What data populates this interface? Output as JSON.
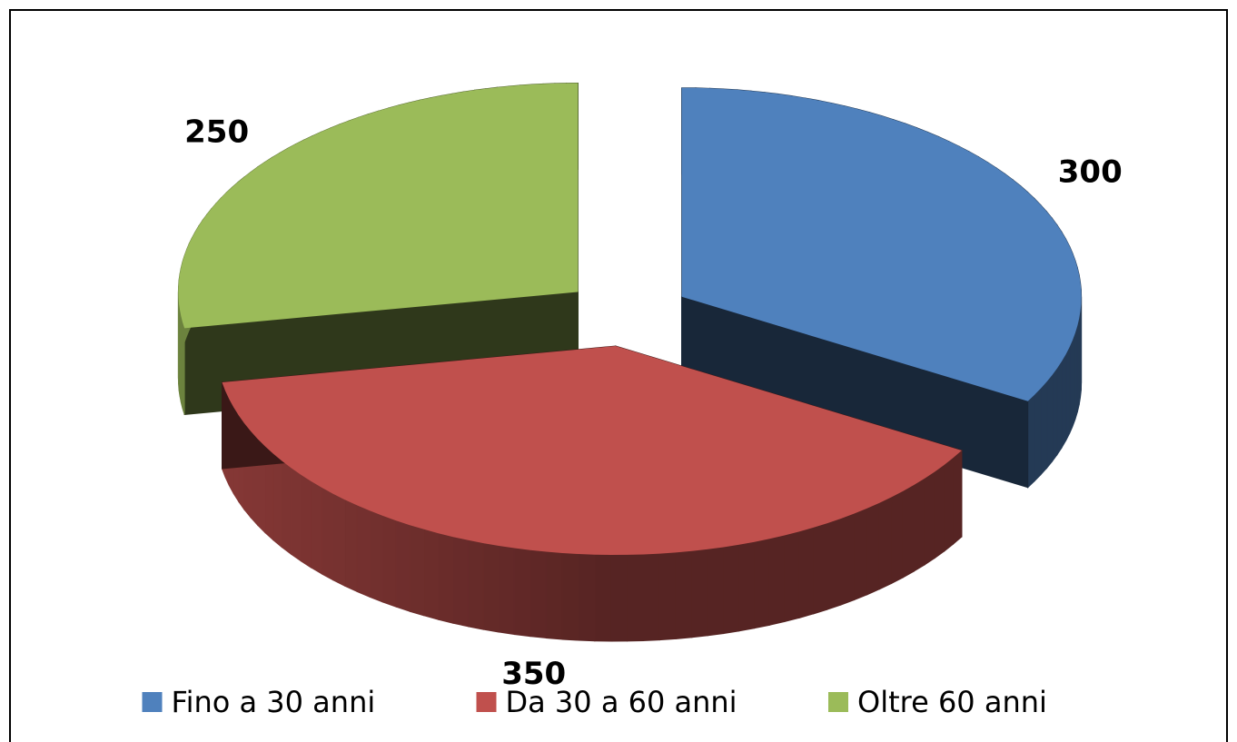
{
  "chart_data": {
    "type": "pie",
    "categories": [
      "Fino a 30 anni",
      "Da 30 a 60 anni",
      "Oltre 60 anni"
    ],
    "values": [
      300,
      350,
      250
    ],
    "colors": [
      "#4f81bd",
      "#c0504d",
      "#9bbb59"
    ],
    "legend": "bottom"
  }
}
